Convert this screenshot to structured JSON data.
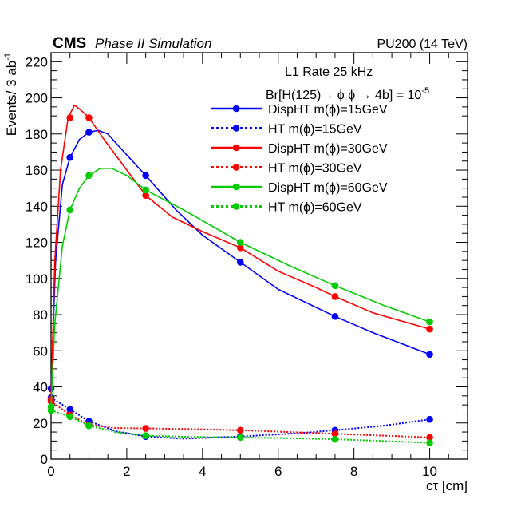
{
  "chart_data": {
    "type": "line",
    "experiment": "CMS",
    "title": "Phase II Simulation",
    "top_right_label": "PU200 (14 TeV)",
    "xlabel": "cτ [cm]",
    "ylabel_main": "Events/ 3 ab",
    "ylabel_sup": "-1",
    "xlim": [
      0,
      11
    ],
    "ylim": [
      0,
      225
    ],
    "xticks": [
      0,
      2,
      4,
      6,
      8,
      10
    ],
    "yticks": [
      0,
      20,
      40,
      60,
      80,
      100,
      120,
      140,
      160,
      180,
      200,
      220
    ],
    "grid": false,
    "legend_position": "top-right",
    "legend_header": "L1 Rate 25 kHz",
    "br_text": "Br[H(125)→ ϕ ϕ → 4b] = 10",
    "br_sup": "-5",
    "series": [
      {
        "name": "DispHT m(ϕ)=15GeV",
        "color": "#0000ff",
        "style": "solid",
        "x": [
          0,
          0.5,
          1,
          2.5,
          5,
          7.5,
          10
        ],
        "y": [
          39,
          167,
          181,
          157,
          109,
          79,
          58
        ],
        "curve": [
          [
            0,
            39
          ],
          [
            0.12,
            110
          ],
          [
            0.3,
            152
          ],
          [
            0.5,
            167
          ],
          [
            0.75,
            177
          ],
          [
            1,
            181
          ],
          [
            1.25,
            182
          ],
          [
            1.5,
            180
          ],
          [
            1.8,
            173
          ],
          [
            2.5,
            157
          ],
          [
            3.3,
            138
          ],
          [
            4,
            124
          ],
          [
            5,
            109
          ],
          [
            6,
            94
          ],
          [
            7,
            84
          ],
          [
            7.5,
            79
          ],
          [
            8.5,
            70
          ],
          [
            10,
            58
          ]
        ]
      },
      {
        "name": "HT m(ϕ)=15GeV",
        "color": "#0000ff",
        "style": "dotted",
        "x": [
          0,
          0.5,
          1,
          2.5,
          5,
          7.5,
          10
        ],
        "y": [
          34,
          27.5,
          21,
          12.5,
          12.5,
          16,
          22
        ],
        "curve": [
          [
            0,
            34
          ],
          [
            0.5,
            27.5
          ],
          [
            1,
            21
          ],
          [
            1.7,
            15.5
          ],
          [
            2.5,
            12.5
          ],
          [
            3.5,
            11.3
          ],
          [
            5,
            12.5
          ],
          [
            6.5,
            14.3
          ],
          [
            7.5,
            16
          ],
          [
            8.8,
            18.5
          ],
          [
            10,
            22
          ]
        ]
      },
      {
        "name": "DispHT m(ϕ)=30GeV",
        "color": "#ff0000",
        "style": "solid",
        "x": [
          0,
          0.5,
          1,
          2.5,
          5,
          7.5,
          10
        ],
        "y": [
          33,
          189,
          189,
          146,
          117,
          90,
          72
        ],
        "curve": [
          [
            0,
            33
          ],
          [
            0.1,
            110
          ],
          [
            0.25,
            160
          ],
          [
            0.45,
            189
          ],
          [
            0.62,
            196
          ],
          [
            0.8,
            193
          ],
          [
            1,
            189
          ],
          [
            1.4,
            177
          ],
          [
            2,
            160
          ],
          [
            2.5,
            146
          ],
          [
            3.2,
            134
          ],
          [
            4,
            126
          ],
          [
            5,
            117
          ],
          [
            6,
            104
          ],
          [
            7,
            95
          ],
          [
            7.5,
            90
          ],
          [
            8.5,
            81
          ],
          [
            10,
            72
          ]
        ]
      },
      {
        "name": "HT m(ϕ)=30GeV",
        "color": "#ff0000",
        "style": "dotted",
        "x": [
          0,
          0.5,
          1,
          2.5,
          5,
          7.5,
          10
        ],
        "y": [
          32,
          24.5,
          19,
          17,
          16,
          14,
          12
        ],
        "curve": [
          [
            0,
            32
          ],
          [
            0.5,
            24.5
          ],
          [
            1,
            19
          ],
          [
            1.7,
            17.2
          ],
          [
            2.5,
            17
          ],
          [
            3.7,
            16.6
          ],
          [
            5,
            16
          ],
          [
            6.3,
            15
          ],
          [
            7.5,
            14
          ],
          [
            8.8,
            13
          ],
          [
            10,
            12
          ]
        ]
      },
      {
        "name": "DispHT m(ϕ)=60GeV",
        "color": "#00cc00",
        "style": "solid",
        "x": [
          0,
          0.5,
          1,
          2.5,
          5,
          7.5,
          10
        ],
        "y": [
          29,
          138,
          157,
          149,
          120,
          96,
          76
        ],
        "curve": [
          [
            0,
            29
          ],
          [
            0.1,
            75
          ],
          [
            0.3,
            118
          ],
          [
            0.5,
            138
          ],
          [
            0.75,
            150
          ],
          [
            1,
            157
          ],
          [
            1.3,
            161
          ],
          [
            1.6,
            161
          ],
          [
            2,
            157
          ],
          [
            2.5,
            149
          ],
          [
            3.5,
            138
          ],
          [
            5,
            120
          ],
          [
            6.3,
            107
          ],
          [
            7.5,
            96
          ],
          [
            8.8,
            85
          ],
          [
            10,
            76
          ]
        ]
      },
      {
        "name": "HT m(ϕ)=60GeV",
        "color": "#00cc00",
        "style": "dotted",
        "x": [
          0,
          0.5,
          1,
          2.5,
          5,
          7.5,
          10
        ],
        "y": [
          27,
          23.5,
          18.5,
          13,
          12,
          11,
          9
        ],
        "curve": [
          [
            0,
            27
          ],
          [
            0.5,
            23.5
          ],
          [
            1,
            18.5
          ],
          [
            1.7,
            15
          ],
          [
            2.5,
            13
          ],
          [
            3.7,
            12.3
          ],
          [
            5,
            12
          ],
          [
            6.3,
            11.6
          ],
          [
            7.5,
            11
          ],
          [
            8.8,
            10
          ],
          [
            10,
            9
          ]
        ]
      }
    ]
  }
}
